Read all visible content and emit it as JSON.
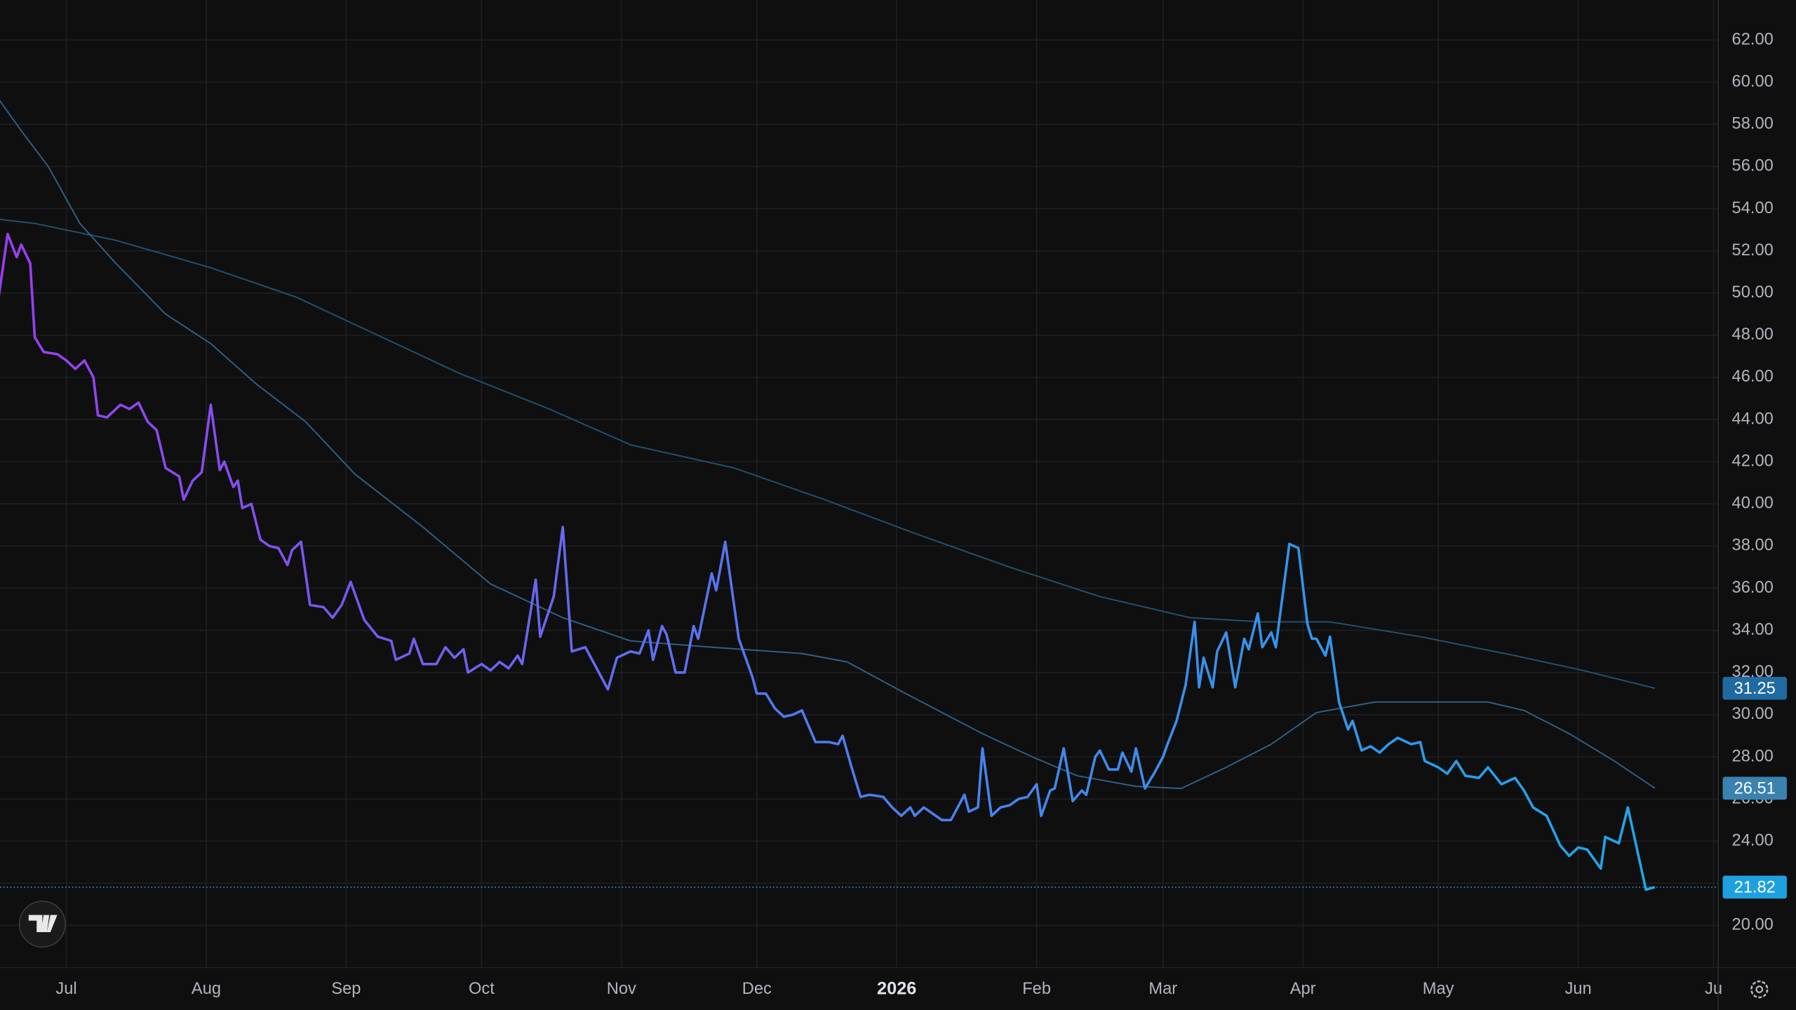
{
  "chart_data": {
    "type": "line",
    "background": "#0f0f0f",
    "grid": true,
    "xlim": [
      -14.7,
      366
    ],
    "ylim": [
      18,
      63.9
    ],
    "xticks": [
      {
        "value": 0,
        "label": "Jul"
      },
      {
        "value": 31,
        "label": "Aug"
      },
      {
        "value": 62,
        "label": "Sep"
      },
      {
        "value": 92,
        "label": "Oct"
      },
      {
        "value": 123,
        "label": "Nov"
      },
      {
        "value": 153,
        "label": "Dec"
      },
      {
        "value": 184,
        "label": "2026"
      },
      {
        "value": 215,
        "label": "Feb"
      },
      {
        "value": 243,
        "label": "Mar"
      },
      {
        "value": 274,
        "label": "Apr"
      },
      {
        "value": 304,
        "label": "May"
      },
      {
        "value": 335,
        "label": "Jun"
      },
      {
        "value": 365,
        "label": "Ju"
      }
    ],
    "yticks": [
      {
        "value": 20,
        "label": "20.00"
      },
      {
        "value": 22,
        "label": "22.00"
      },
      {
        "value": 24,
        "label": "24.00"
      },
      {
        "value": 26,
        "label": "26.00"
      },
      {
        "value": 28,
        "label": "28.00"
      },
      {
        "value": 30,
        "label": "30.00"
      },
      {
        "value": 32,
        "label": "32.00"
      },
      {
        "value": 34,
        "label": "34.00"
      },
      {
        "value": 36,
        "label": "36.00"
      },
      {
        "value": 38,
        "label": "38.00"
      },
      {
        "value": 40,
        "label": "40.00"
      },
      {
        "value": 42,
        "label": "42.00"
      },
      {
        "value": 44,
        "label": "44.00"
      },
      {
        "value": 46,
        "label": "46.00"
      },
      {
        "value": 48,
        "label": "48.00"
      },
      {
        "value": 50,
        "label": "50.00"
      },
      {
        "value": 52,
        "label": "52.00"
      },
      {
        "value": 54,
        "label": "54.00"
      },
      {
        "value": 56,
        "label": "56.00"
      },
      {
        "value": 58,
        "label": "58.00"
      },
      {
        "value": 60,
        "label": "60.00"
      },
      {
        "value": 62,
        "label": "62.00"
      }
    ],
    "series": [
      {
        "color": "#24506e",
        "label_color": "#1f6aa0",
        "width": 1.2,
        "x": [
          -15,
          -7,
          11,
          32,
          51,
          69,
          87,
          107,
          125,
          148,
          168,
          188,
          209,
          229,
          249,
          265,
          280,
          300,
          321,
          336,
          352
        ],
        "values": [
          53.5,
          53.3,
          52.5,
          51.2,
          49.8,
          48,
          46.2,
          44.5,
          42.8,
          41.7,
          40.2,
          38.6,
          37,
          35.6,
          34.6,
          34.4,
          34.4,
          33.7,
          32.8,
          32.1,
          31.25
        ]
      },
      {
        "color": "#2f5f85",
        "label_color": "#3a82b0",
        "width": 1.2,
        "x": [
          -15,
          -10,
          -4,
          3,
          11,
          22,
          32,
          42,
          53,
          64,
          79,
          94,
          110,
          125,
          143,
          163,
          173,
          186,
          203,
          214,
          224,
          237,
          247,
          257,
          267,
          277,
          290,
          300,
          315,
          323,
          333,
          343,
          352
        ],
        "values": [
          59.2,
          57.7,
          56,
          53.3,
          51.4,
          49,
          47.6,
          45.7,
          43.9,
          41.4,
          38.9,
          36.2,
          34.6,
          33.5,
          33.2,
          32.9,
          32.5,
          31,
          29.1,
          28,
          27.1,
          26.6,
          26.5,
          27.5,
          28.6,
          30.1,
          30.6,
          30.6,
          30.6,
          30.2,
          29.1,
          27.8,
          26.51
        ]
      },
      {
        "color": "#1ea0e0",
        "gradient": [
          "#9a3df0",
          "#4f7cf0",
          "#1ea7e8"
        ],
        "label_color": "#1ea0e0",
        "width": 2.2,
        "last_price_line": true,
        "x": [
          -15,
          -13,
          -11,
          -10,
          -8,
          -7,
          -5,
          -2,
          0,
          2,
          4,
          6,
          7,
          9,
          12,
          14,
          16,
          18,
          20,
          22,
          25,
          26,
          28,
          30,
          32,
          34,
          35,
          37,
          38,
          39,
          41,
          43,
          45,
          47,
          49,
          50,
          52,
          54,
          57,
          59,
          61,
          63,
          66,
          69,
          72,
          73,
          76,
          77,
          79,
          82,
          84,
          86,
          88,
          89,
          92,
          94,
          96,
          98,
          100,
          101,
          104,
          105,
          108,
          110,
          112,
          115,
          117,
          120,
          122,
          125,
          127,
          129,
          130,
          132,
          133,
          135,
          137,
          139,
          140,
          143,
          144,
          146,
          149,
          152,
          153,
          155,
          157,
          159,
          161,
          163,
          166,
          169,
          171,
          172,
          174,
          176,
          178,
          181,
          183,
          185,
          187,
          188,
          190,
          192,
          194,
          196,
          199,
          200,
          202,
          203,
          205,
          207,
          209,
          211,
          213,
          215,
          216,
          218,
          219,
          221,
          223,
          225,
          226,
          228,
          229,
          231,
          233,
          234,
          236,
          237,
          239,
          241,
          243,
          244,
          246,
          248,
          250,
          251,
          252,
          254,
          255,
          257,
          259,
          261,
          262,
          264,
          265,
          267,
          268,
          271,
          273,
          275,
          276,
          277,
          279,
          280,
          282,
          284,
          285,
          287,
          289,
          291,
          293,
          295,
          298,
          300,
          301,
          304,
          306,
          308,
          310,
          313,
          315,
          318,
          321,
          323,
          325,
          328,
          331,
          333,
          335,
          337,
          340,
          341,
          344,
          346,
          350,
          352
        ],
        "values": [
          49.8,
          52.8,
          51.7,
          52.3,
          51.4,
          47.9,
          47.2,
          47.1,
          46.8,
          46.4,
          46.8,
          46,
          44.2,
          44.1,
          44.7,
          44.5,
          44.8,
          43.9,
          43.5,
          41.7,
          41.3,
          40.2,
          41.1,
          41.5,
          44.7,
          41.6,
          42,
          40.8,
          41.1,
          39.8,
          40,
          38.3,
          38,
          37.9,
          37.1,
          37.8,
          38.2,
          35.2,
          35.1,
          34.6,
          35.2,
          36.3,
          34.5,
          33.7,
          33.5,
          32.6,
          32.9,
          33.6,
          32.4,
          32.4,
          33.2,
          32.7,
          33.1,
          32,
          32.4,
          32.1,
          32.5,
          32.2,
          32.8,
          32.4,
          36.4,
          33.7,
          35.6,
          38.9,
          33,
          33.2,
          32.4,
          31.2,
          32.7,
          33,
          32.9,
          34,
          32.6,
          34.2,
          33.8,
          32,
          32,
          34.2,
          33.6,
          36.7,
          35.9,
          38.2,
          33.6,
          31.8,
          31,
          31,
          30.3,
          29.9,
          30,
          30.2,
          28.7,
          28.7,
          28.6,
          29,
          27.5,
          26.1,
          26.2,
          26.1,
          25.6,
          25.2,
          25.6,
          25.2,
          25.6,
          25.3,
          25,
          25,
          26.2,
          25.4,
          25.6,
          28.4,
          25.2,
          25.6,
          25.7,
          26,
          26.1,
          26.7,
          25.2,
          26.4,
          26.5,
          28.4,
          25.9,
          26.4,
          26.2,
          28,
          28.3,
          27.4,
          27.4,
          28.2,
          27.3,
          28.4,
          26.5,
          27.2,
          28,
          28.6,
          29.7,
          31.4,
          34.4,
          31.3,
          32.7,
          31.3,
          33,
          33.9,
          31.3,
          33.6,
          33.1,
          34.8,
          33.2,
          33.9,
          33.2,
          38.1,
          37.9,
          34.3,
          33.6,
          33.6,
          32.8,
          33.7,
          30.6,
          29.3,
          29.7,
          28.3,
          28.5,
          28.2,
          28.6,
          28.9,
          28.6,
          28.7,
          27.8,
          27.5,
          27.2,
          27.8,
          27.1,
          27,
          27.5,
          26.7,
          27,
          26.4,
          25.6,
          25.2,
          23.8,
          23.3,
          23.7,
          23.6,
          22.7,
          24.2,
          23.9,
          25.6,
          21.7,
          21.82
        ]
      }
    ]
  }
}
